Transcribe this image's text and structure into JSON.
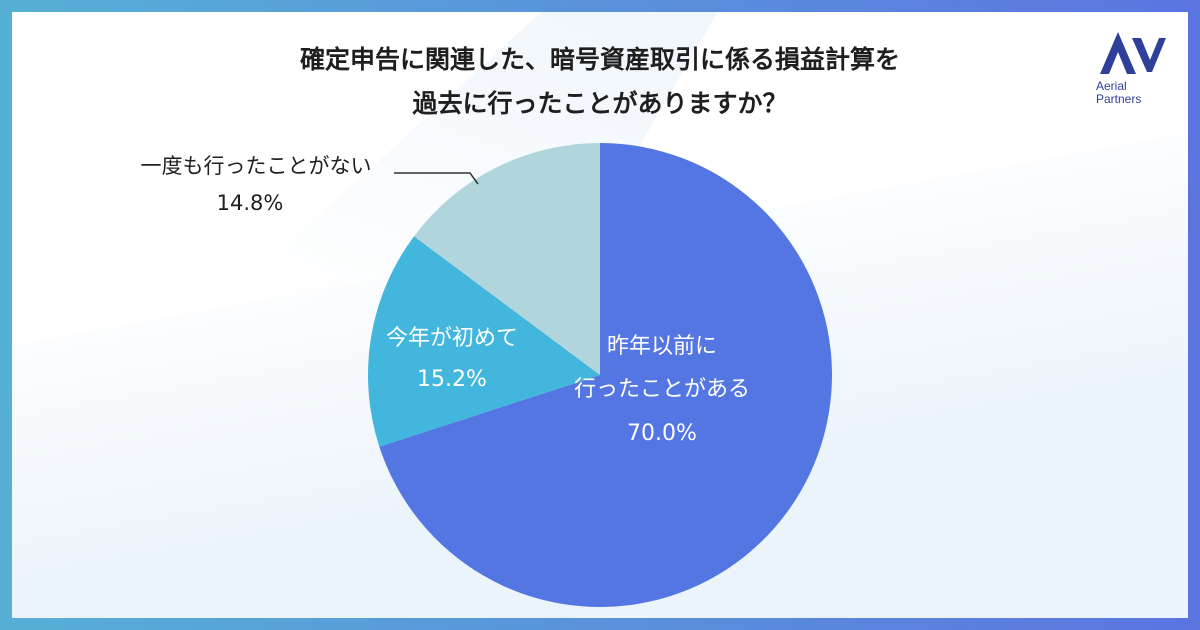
{
  "title_lines": [
    "確定申告に関連した、暗号資産取引に係る損益計算を",
    "過去に行ったことがありますか？"
  ],
  "logo": {
    "line1": "Aerial",
    "line2": "Partners",
    "color": "#2f3f9a"
  },
  "chart_data": {
    "type": "pie",
    "title": "確定申告に関連した、暗号資産取引に係る損益計算を過去に行ったことがありますか？",
    "slices": [
      {
        "label_lines": [
          "昨年以前に",
          "行ったことがある"
        ],
        "value": 70.0,
        "value_label": "70.0%",
        "color": "#5476e3"
      },
      {
        "label_lines": [
          "今年が初めて"
        ],
        "value": 15.2,
        "value_label": "15.2%",
        "color": "#42b6dc"
      },
      {
        "label_lines": [
          "一度も行ったことがない"
        ],
        "value": 14.8,
        "value_label": "14.8%",
        "color": "#b0d5dc"
      }
    ],
    "start": "12 o'clock",
    "direction": "clockwise"
  }
}
